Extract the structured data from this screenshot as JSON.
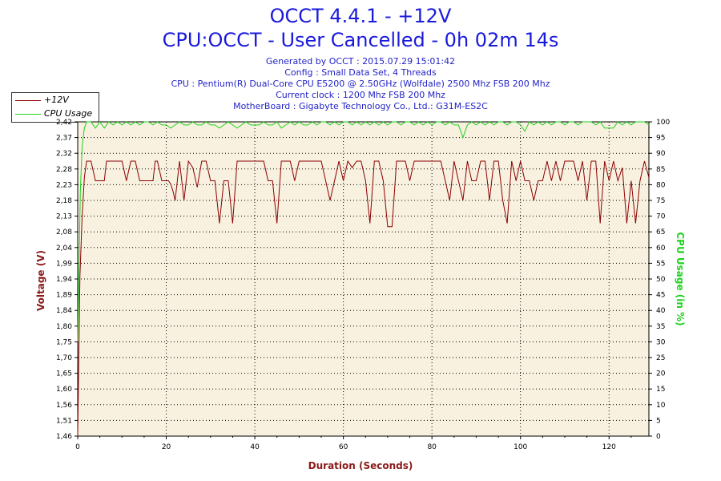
{
  "header": {
    "title_line1": "OCCT 4.4.1 - +12V",
    "title_line2": "CPU:OCCT - User Cancelled - 0h 02m 14s",
    "info": [
      "Generated by OCCT : 2015.07.29 15:01:42",
      "Config : Small Data Set, 4 Threads",
      "CPU : Pentium(R) Dual-Core CPU E5200 @ 2.50GHz (Wolfdale) 2500 Mhz FSB 200 Mhz",
      "Current clock : 1200 Mhz FSB 200 Mhz",
      "MotherBoard : Gigabyte Technology Co., Ltd.: G31M-ES2C"
    ]
  },
  "legend": {
    "items": [
      {
        "label": "+12V",
        "color": "#8b0000"
      },
      {
        "label": "CPU Usage",
        "color": "#1ed31e"
      }
    ]
  },
  "chart_data": {
    "type": "line",
    "xlabel": "Duration (Seconds)",
    "ylabel": "Voltage (V)",
    "y2label": "CPU Usage (in %)",
    "xlim": [
      0,
      129
    ],
    "ylim": [
      1.46,
      2.42
    ],
    "y2lim": [
      0,
      100
    ],
    "x_ticks": [
      "0",
      "20",
      "40",
      "60",
      "80",
      "100",
      "120"
    ],
    "y_ticks": [
      "1,46",
      "1,51",
      "1,56",
      "1,60",
      "1,65",
      "1,70",
      "1,75",
      "1,80",
      "1,84",
      "1,89",
      "1,94",
      "1,99",
      "2,04",
      "2,08",
      "2,13",
      "2,18",
      "2,23",
      "2,28",
      "2,32",
      "2,37",
      "2,42"
    ],
    "y2_ticks": [
      "0",
      "5",
      "10",
      "15",
      "20",
      "25",
      "30",
      "35",
      "40",
      "45",
      "50",
      "55",
      "60",
      "65",
      "70",
      "75",
      "80",
      "85",
      "90",
      "95",
      "100"
    ],
    "grid": true,
    "legend_position": "top-left",
    "background_color": "#f8f1e0",
    "series": [
      {
        "name": "+12V",
        "axis": "left",
        "color": "#8b0000",
        "points": [
          [
            0,
            1.46
          ],
          [
            0.5,
            1.95
          ],
          [
            1,
            2.13
          ],
          [
            1.5,
            2.25
          ],
          [
            2,
            2.3
          ],
          [
            3,
            2.3
          ],
          [
            4,
            2.24
          ],
          [
            5,
            2.24
          ],
          [
            6,
            2.24
          ],
          [
            6.5,
            2.3
          ],
          [
            8,
            2.3
          ],
          [
            9,
            2.3
          ],
          [
            10,
            2.3
          ],
          [
            11,
            2.24
          ],
          [
            12,
            2.3
          ],
          [
            13,
            2.3
          ],
          [
            14,
            2.24
          ],
          [
            15,
            2.24
          ],
          [
            16,
            2.24
          ],
          [
            17,
            2.24
          ],
          [
            17.5,
            2.3
          ],
          [
            18,
            2.3
          ],
          [
            19,
            2.24
          ],
          [
            20,
            2.24
          ],
          [
            20.5,
            2.24
          ],
          [
            21,
            2.23
          ],
          [
            21.5,
            2.21
          ],
          [
            22,
            2.18
          ],
          [
            23,
            2.3
          ],
          [
            24,
            2.18
          ],
          [
            25,
            2.3
          ],
          [
            26,
            2.28
          ],
          [
            27,
            2.22
          ],
          [
            28,
            2.3
          ],
          [
            29,
            2.3
          ],
          [
            30,
            2.24
          ],
          [
            31,
            2.24
          ],
          [
            32,
            2.11
          ],
          [
            33,
            2.24
          ],
          [
            34,
            2.24
          ],
          [
            35,
            2.11
          ],
          [
            36,
            2.3
          ],
          [
            37,
            2.3
          ],
          [
            38,
            2.3
          ],
          [
            39,
            2.3
          ],
          [
            40,
            2.3
          ],
          [
            41,
            2.3
          ],
          [
            41.5,
            2.3
          ],
          [
            42,
            2.3
          ],
          [
            43,
            2.24
          ],
          [
            44,
            2.24
          ],
          [
            45,
            2.11
          ],
          [
            46,
            2.3
          ],
          [
            47,
            2.3
          ],
          [
            48,
            2.3
          ],
          [
            49,
            2.24
          ],
          [
            50,
            2.3
          ],
          [
            51,
            2.3
          ],
          [
            52,
            2.3
          ],
          [
            53,
            2.3
          ],
          [
            54,
            2.3
          ],
          [
            55,
            2.3
          ],
          [
            56,
            2.24
          ],
          [
            57,
            2.18
          ],
          [
            58,
            2.24
          ],
          [
            59,
            2.3
          ],
          [
            60,
            2.24
          ],
          [
            61,
            2.3
          ],
          [
            62,
            2.28
          ],
          [
            63,
            2.3
          ],
          [
            64,
            2.3
          ],
          [
            65,
            2.24
          ],
          [
            66,
            2.11
          ],
          [
            67,
            2.3
          ],
          [
            68,
            2.3
          ],
          [
            69,
            2.24
          ],
          [
            70,
            2.1
          ],
          [
            71,
            2.1
          ],
          [
            72,
            2.3
          ],
          [
            73,
            2.3
          ],
          [
            74,
            2.3
          ],
          [
            75,
            2.24
          ],
          [
            76,
            2.3
          ],
          [
            77,
            2.3
          ],
          [
            78,
            2.3
          ],
          [
            79,
            2.3
          ],
          [
            80,
            2.3
          ],
          [
            81,
            2.3
          ],
          [
            82,
            2.3
          ],
          [
            83,
            2.24
          ],
          [
            84,
            2.18
          ],
          [
            85,
            2.3
          ],
          [
            86,
            2.24
          ],
          [
            87,
            2.18
          ],
          [
            88,
            2.3
          ],
          [
            89,
            2.24
          ],
          [
            90,
            2.24
          ],
          [
            91,
            2.3
          ],
          [
            92,
            2.3
          ],
          [
            93,
            2.18
          ],
          [
            94,
            2.3
          ],
          [
            95,
            2.3
          ],
          [
            96,
            2.18
          ],
          [
            97,
            2.11
          ],
          [
            98,
            2.3
          ],
          [
            99,
            2.24
          ],
          [
            100,
            2.3
          ],
          [
            101,
            2.24
          ],
          [
            102,
            2.24
          ],
          [
            103,
            2.18
          ],
          [
            104,
            2.24
          ],
          [
            105,
            2.24
          ],
          [
            106,
            2.3
          ],
          [
            107,
            2.24
          ],
          [
            108,
            2.3
          ],
          [
            109,
            2.24
          ],
          [
            110,
            2.3
          ],
          [
            111,
            2.3
          ],
          [
            112,
            2.3
          ],
          [
            113,
            2.24
          ],
          [
            114,
            2.3
          ],
          [
            115,
            2.18
          ],
          [
            116,
            2.3
          ],
          [
            117,
            2.3
          ],
          [
            118,
            2.11
          ],
          [
            119,
            2.3
          ],
          [
            120,
            2.24
          ],
          [
            121,
            2.3
          ],
          [
            122,
            2.24
          ],
          [
            123,
            2.28
          ],
          [
            124,
            2.11
          ],
          [
            125,
            2.24
          ],
          [
            126,
            2.11
          ],
          [
            127,
            2.24
          ],
          [
            128,
            2.3
          ],
          [
            129,
            2.25
          ]
        ]
      },
      {
        "name": "CPU Usage",
        "axis": "right",
        "color": "#1ed31e",
        "points": [
          [
            0,
            30
          ],
          [
            0.3,
            55
          ],
          [
            0.6,
            78
          ],
          [
            1,
            92
          ],
          [
            1.5,
            98
          ],
          [
            2,
            100
          ],
          [
            3,
            100
          ],
          [
            4,
            98
          ],
          [
            5,
            100
          ],
          [
            6,
            98
          ],
          [
            7,
            100
          ],
          [
            8,
            99
          ],
          [
            9,
            100
          ],
          [
            10,
            99
          ],
          [
            11,
            100
          ],
          [
            12,
            99
          ],
          [
            13,
            100
          ],
          [
            14,
            99
          ],
          [
            15,
            100
          ],
          [
            16,
            100
          ],
          [
            17,
            99
          ],
          [
            18,
            100
          ],
          [
            19,
            99
          ],
          [
            20,
            99
          ],
          [
            21,
            98
          ],
          [
            22,
            99
          ],
          [
            23,
            100
          ],
          [
            24,
            99
          ],
          [
            25,
            99
          ],
          [
            26,
            100
          ],
          [
            27,
            99
          ],
          [
            28,
            99
          ],
          [
            29,
            100
          ],
          [
            30,
            99
          ],
          [
            31,
            99
          ],
          [
            32,
            98
          ],
          [
            33,
            99
          ],
          [
            34,
            100
          ],
          [
            35,
            99
          ],
          [
            36,
            98
          ],
          [
            37,
            99
          ],
          [
            38,
            100
          ],
          [
            39,
            99
          ],
          [
            40,
            99
          ],
          [
            41,
            99
          ],
          [
            42,
            100
          ],
          [
            43,
            99
          ],
          [
            44,
            99
          ],
          [
            45,
            100
          ],
          [
            46,
            98
          ],
          [
            47,
            99
          ],
          [
            48,
            100
          ],
          [
            49,
            99
          ],
          [
            50,
            100
          ],
          [
            51,
            99
          ],
          [
            52,
            99
          ],
          [
            53,
            100
          ],
          [
            54,
            99
          ],
          [
            55,
            100
          ],
          [
            56,
            100
          ],
          [
            57,
            99
          ],
          [
            58,
            100
          ],
          [
            59,
            99
          ],
          [
            60,
            100
          ],
          [
            61,
            100
          ],
          [
            62,
            99
          ],
          [
            63,
            100
          ],
          [
            64,
            99
          ],
          [
            65,
            100
          ],
          [
            66,
            99
          ],
          [
            67,
            100
          ],
          [
            68,
            99
          ],
          [
            69,
            100
          ],
          [
            70,
            99
          ],
          [
            71,
            100
          ],
          [
            72,
            100
          ],
          [
            73,
            99
          ],
          [
            74,
            100
          ],
          [
            75,
            100
          ],
          [
            76,
            99
          ],
          [
            77,
            100
          ],
          [
            78,
            99
          ],
          [
            79,
            100
          ],
          [
            80,
            99
          ],
          [
            81,
            100
          ],
          [
            82,
            100
          ],
          [
            83,
            99
          ],
          [
            84,
            100
          ],
          [
            85,
            99
          ],
          [
            86,
            99
          ],
          [
            87,
            95
          ],
          [
            88,
            99
          ],
          [
            89,
            100
          ],
          [
            90,
            99
          ],
          [
            91,
            100
          ],
          [
            92,
            99
          ],
          [
            93,
            100
          ],
          [
            94,
            99
          ],
          [
            95,
            100
          ],
          [
            96,
            100
          ],
          [
            97,
            99
          ],
          [
            98,
            100
          ],
          [
            99,
            100
          ],
          [
            100,
            99
          ],
          [
            101,
            97
          ],
          [
            102,
            100
          ],
          [
            103,
            99
          ],
          [
            104,
            100
          ],
          [
            105,
            99
          ],
          [
            106,
            100
          ],
          [
            107,
            99
          ],
          [
            108,
            100
          ],
          [
            109,
            100
          ],
          [
            110,
            99
          ],
          [
            111,
            100
          ],
          [
            112,
            100
          ],
          [
            113,
            99
          ],
          [
            114,
            100
          ],
          [
            115,
            100
          ],
          [
            116,
            100
          ],
          [
            117,
            99
          ],
          [
            118,
            100
          ],
          [
            119,
            98
          ],
          [
            120,
            98
          ],
          [
            121,
            98
          ],
          [
            122,
            100
          ],
          [
            123,
            99
          ],
          [
            124,
            100
          ],
          [
            125,
            99
          ],
          [
            126,
            100
          ],
          [
            127,
            100
          ],
          [
            128,
            100
          ],
          [
            129,
            99
          ]
        ]
      }
    ]
  }
}
